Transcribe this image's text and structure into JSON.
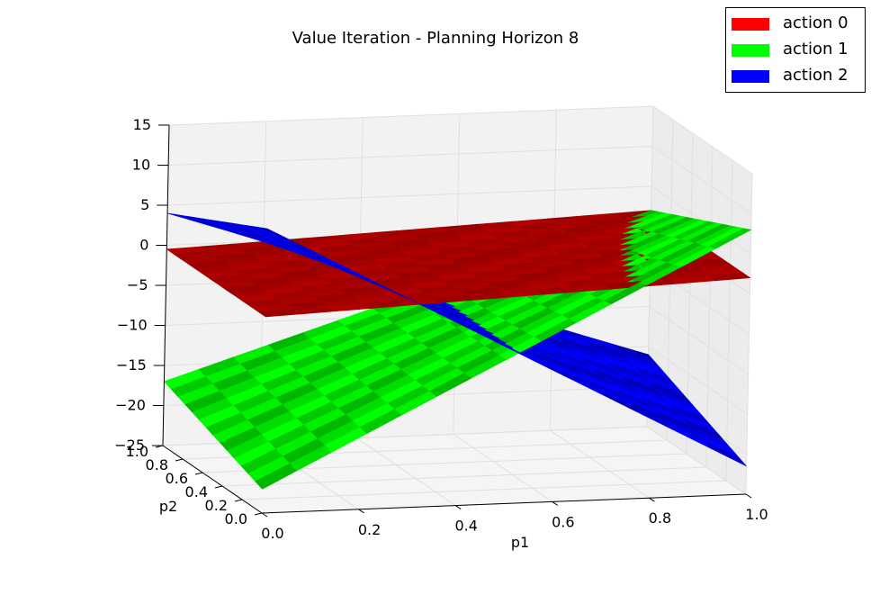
{
  "chart_data": {
    "type": "surface3d",
    "title": "Value Iteration - Planning Horizon 8",
    "xlabel": "p1",
    "ylabel": "p2",
    "zlabel": "",
    "xlim": [
      0.0,
      1.0
    ],
    "ylim": [
      0.0,
      1.0
    ],
    "zlim": [
      -25,
      15
    ],
    "x_ticks": [
      "0.0",
      "0.2",
      "0.4",
      "0.6",
      "0.8",
      "1.0"
    ],
    "y_ticks": [
      "0.0",
      "0.2",
      "0.4",
      "0.6",
      "0.8",
      "1.0"
    ],
    "z_ticks": [
      "−25",
      "−20",
      "−15",
      "−10",
      "−5",
      "0",
      "5",
      "10",
      "15"
    ],
    "legend_position": "top-right",
    "series": [
      {
        "name": "action 0",
        "color": "#ff0000",
        "corners": {
          "p1_0_p2_0": -0.5,
          "p1_1_p2_0": 2.0,
          "p1_0_p2_1": -0.5,
          "p1_1_p2_1": 2.0
        }
      },
      {
        "name": "action 1",
        "color": "#00ff00",
        "corners": {
          "p1_0_p2_0": -22.0,
          "p1_1_p2_0": 8.0,
          "p1_0_p2_1": -17.0,
          "p1_1_p2_1": 2.0
        }
      },
      {
        "name": "action 2",
        "color": "#0000ff",
        "corners": {
          "p1_0_p2_0": 10.5,
          "p1_1_p2_0": -21.5,
          "p1_0_p2_1": 4.0,
          "p1_1_p2_1": -16.0
        }
      }
    ]
  }
}
